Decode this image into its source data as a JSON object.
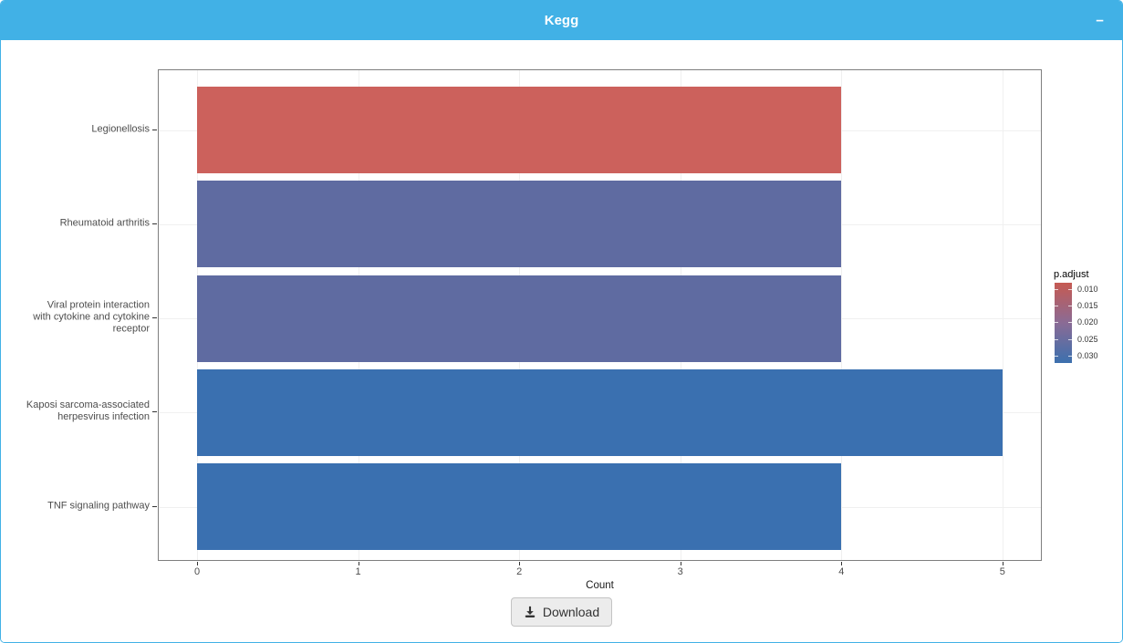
{
  "panel": {
    "title": "Kegg",
    "collapse_label": "−"
  },
  "chart_data": {
    "type": "bar",
    "orientation": "horizontal",
    "title": "",
    "xlabel": "Count",
    "ylabel": "",
    "xlim": [
      0,
      5.25
    ],
    "x_ticks": [
      "0",
      "1",
      "2",
      "3",
      "4",
      "5"
    ],
    "grid": true,
    "categories": [
      "Legionellosis",
      "Rheumatoid arthritis",
      "Viral protein interaction\nwith cytokine and cytokine\nreceptor",
      "Kaposi sarcoma-associated\nherpesvirus infection",
      "TNF signaling pathway"
    ],
    "values": [
      4,
      4,
      4,
      5,
      4
    ],
    "bar_colors": [
      "#cc615c",
      "#5f6ba1",
      "#5f6ba1",
      "#3a70b0",
      "#3a70b0"
    ],
    "legend": {
      "title": "p.adjust",
      "position": "right",
      "tick_labels": [
        "0.010",
        "0.015",
        "0.020",
        "0.025",
        "0.030"
      ],
      "gradient_top": "#c65a52",
      "gradient_mid": "#8a6b95",
      "gradient_bottom": "#3c70ae"
    }
  },
  "download": {
    "label": "Download",
    "icon": "download-icon"
  },
  "colors": {
    "header_bg": "#41b1e6",
    "panel_border": "#7f7f7f",
    "gridline": "#f0f0f0"
  }
}
